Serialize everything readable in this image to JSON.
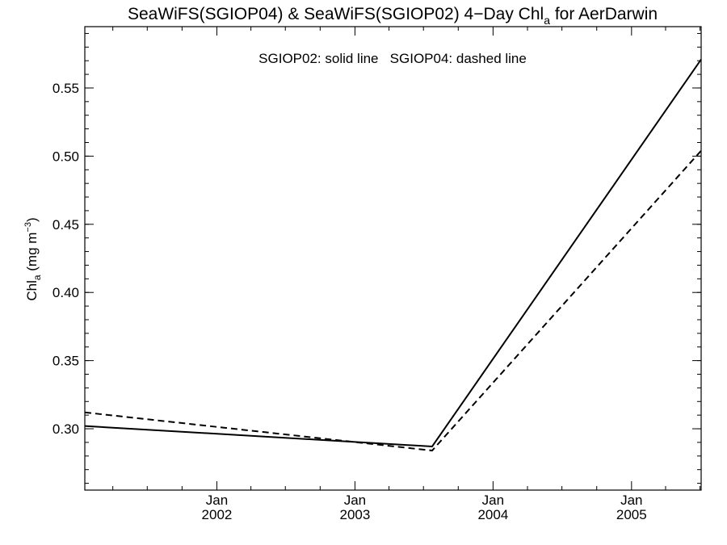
{
  "chart_data": {
    "type": "line",
    "title_main": "SeaWiFS(SGIOP04) & SeaWiFS(SGIOP02) 4−Day Chl",
    "title_sub": "a",
    "title_end": " for AerDarwin",
    "annotation": "SGIOP02: solid line   SGIOP04: dashed line",
    "ylabel": {
      "main": "Chl",
      "sub": "a",
      "unit": " (mg m",
      "sup": "−3",
      "close": ")"
    },
    "x_axis": {
      "type": "date",
      "range": [
        "2001-01-17",
        "2005-07-04"
      ],
      "ticks": [
        {
          "month": "Jan",
          "year": "2002",
          "date": "2002-01-01"
        },
        {
          "month": "Jan",
          "year": "2003",
          "date": "2003-01-01"
        },
        {
          "month": "Jan",
          "year": "2004",
          "date": "2004-01-01"
        },
        {
          "month": "Jan",
          "year": "2005",
          "date": "2005-01-01"
        }
      ]
    },
    "y_axis": {
      "range": [
        0.255,
        0.595
      ],
      "ticks": [
        "0.30",
        "0.35",
        "0.40",
        "0.45",
        "0.50",
        "0.55"
      ]
    },
    "series": [
      {
        "line_style": "solid",
        "points": [
          {
            "x": "2001-01-17",
            "y": 0.302
          },
          {
            "x": "2003-07-24",
            "y": 0.287
          },
          {
            "x": "2005-07-04",
            "y": 0.571
          }
        ]
      },
      {
        "line_style": "dashed",
        "points": [
          {
            "x": "2001-01-17",
            "y": 0.312
          },
          {
            "x": "2003-07-24",
            "y": 0.284
          },
          {
            "x": "2005-07-04",
            "y": 0.504
          }
        ]
      }
    ],
    "grid": false,
    "legend": "none"
  }
}
